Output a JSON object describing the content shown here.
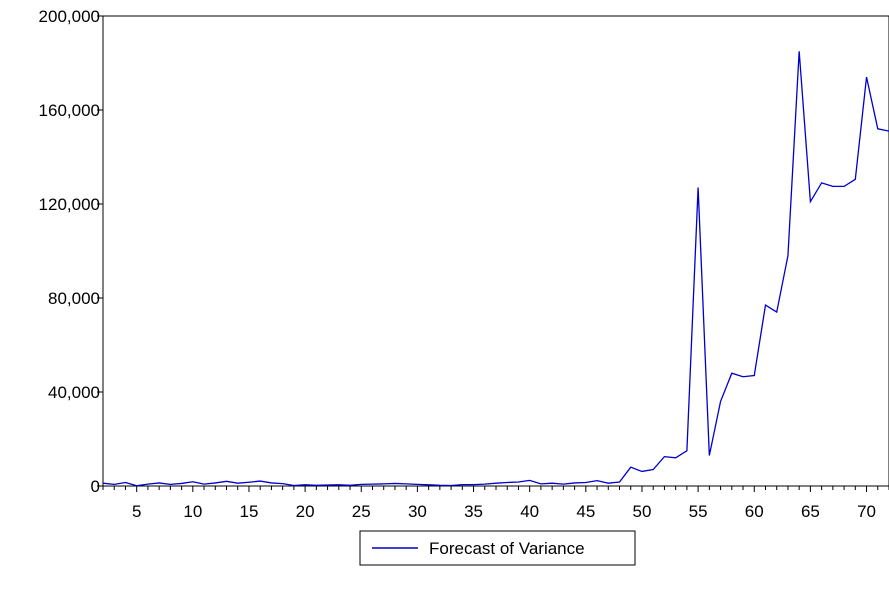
{
  "chart_data": {
    "type": "line",
    "title": "",
    "xlabel": "",
    "ylabel": "",
    "xlim": [
      2,
      72
    ],
    "ylim": [
      0,
      200000
    ],
    "x_ticks": [
      5,
      10,
      15,
      20,
      25,
      30,
      35,
      40,
      45,
      50,
      55,
      60,
      65,
      70
    ],
    "y_ticks": [
      0,
      40000,
      80000,
      120000,
      160000,
      200000
    ],
    "x_tick_labels": [
      "5",
      "10",
      "15",
      "20",
      "25",
      "30",
      "35",
      "40",
      "45",
      "50",
      "55",
      "60",
      "65",
      "70"
    ],
    "y_tick_labels": [
      "0",
      "40,000",
      "80,000",
      "120,000",
      "160,000",
      "200,000"
    ],
    "grid": false,
    "legend_position": "bottom-center",
    "series": [
      {
        "name": "Forecast of Variance",
        "color": "#0000cc",
        "x": [
          2,
          3,
          4,
          5,
          6,
          7,
          8,
          9,
          10,
          11,
          12,
          13,
          14,
          15,
          16,
          17,
          18,
          19,
          20,
          21,
          22,
          23,
          24,
          25,
          26,
          27,
          28,
          29,
          30,
          31,
          32,
          33,
          34,
          35,
          36,
          37,
          38,
          39,
          40,
          41,
          42,
          43,
          44,
          45,
          46,
          47,
          48,
          49,
          50,
          51,
          52,
          53,
          54,
          55,
          56,
          57,
          58,
          59,
          60,
          61,
          62,
          63,
          64,
          65,
          66,
          67,
          68,
          69,
          70,
          71,
          72
        ],
        "values": [
          1200,
          700,
          1500,
          100,
          800,
          1300,
          700,
          1100,
          1800,
          800,
          1300,
          2000,
          1200,
          1600,
          2100,
          1300,
          1000,
          200,
          500,
          300,
          400,
          500,
          300,
          700,
          800,
          900,
          1100,
          900,
          700,
          500,
          300,
          200,
          600,
          600,
          800,
          1200,
          1500,
          1700,
          2400,
          900,
          1200,
          800,
          1300,
          1500,
          2300,
          1200,
          1700,
          8000,
          6200,
          7000,
          12500,
          12000,
          15000,
          127000,
          13000,
          36000,
          48000,
          46500,
          47000,
          77000,
          74000,
          98000,
          185000,
          121000,
          129000,
          127500,
          127500,
          130500,
          174000,
          152000,
          151000
        ]
      }
    ]
  }
}
